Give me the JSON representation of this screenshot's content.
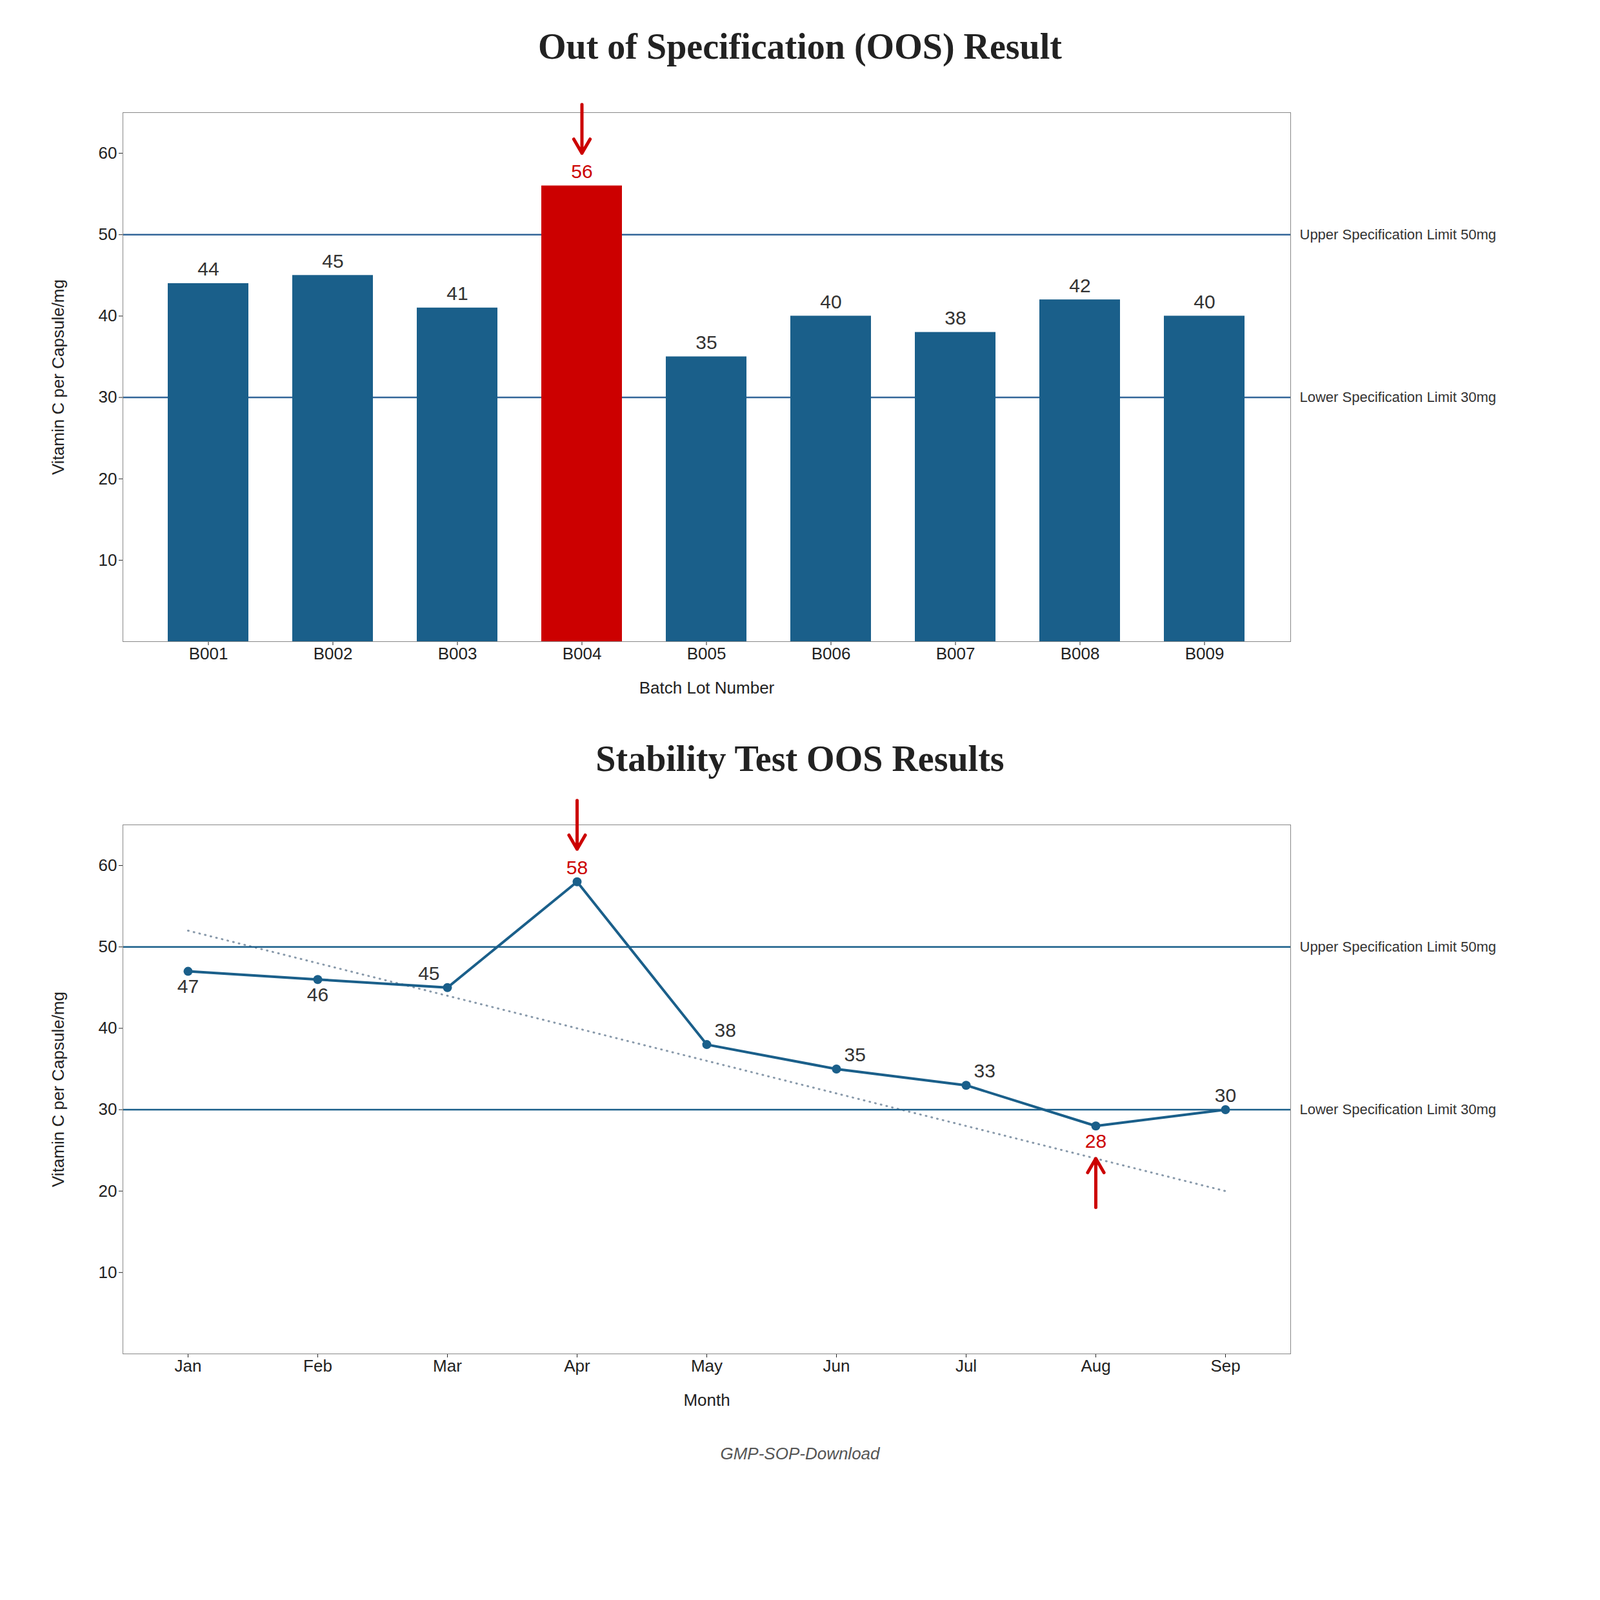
{
  "chart_data": [
    {
      "type": "bar",
      "title": "Out of Specification (OOS) Result",
      "xlabel": "Batch Lot Number",
      "ylabel": "Vitamin C per Capsule/mg",
      "categories": [
        "B001",
        "B002",
        "B003",
        "B004",
        "B005",
        "B006",
        "B007",
        "B008",
        "B009"
      ],
      "values": [
        44,
        45,
        41,
        56,
        35,
        40,
        38,
        42,
        40
      ],
      "colors": [
        "#1a5f8a",
        "#1a5f8a",
        "#1a5f8a",
        "#cc0000",
        "#1a5f8a",
        "#1a5f8a",
        "#1a5f8a",
        "#1a5f8a",
        "#1a5f8a"
      ],
      "ylim": [
        0,
        65
      ],
      "yticks": [
        10,
        20,
        30,
        40,
        50,
        60
      ],
      "grid": false,
      "data_labels": true,
      "limits": [
        {
          "value": 50,
          "label": "Upper Specification Limit 50mg",
          "color": "#336699"
        },
        {
          "value": 30,
          "label": "Lower Specification Limit 30mg",
          "color": "#336699"
        }
      ],
      "oos_color": "#cc0000",
      "oos_points": [
        {
          "index": 3,
          "arrow": "down"
        }
      ]
    },
    {
      "type": "line",
      "title": "Stability Test OOS Results",
      "xlabel": "Month",
      "ylabel": "Vitamin C per Capsule/mg",
      "categories": [
        "Jan",
        "Feb",
        "Mar",
        "Apr",
        "May",
        "Jun",
        "Jul",
        "Aug",
        "Sep"
      ],
      "values": [
        47,
        46,
        45,
        58,
        38,
        35,
        33,
        28,
        30
      ],
      "color": "#1a5f8a",
      "marker": "circle",
      "line_style": "solid",
      "ylim": [
        0,
        65
      ],
      "yticks": [
        10,
        20,
        30,
        40,
        50,
        60
      ],
      "grid": false,
      "data_labels": true,
      "limits": [
        {
          "value": 50,
          "label": "Upper Specification Limit 50mg",
          "color": "#1a5f8a"
        },
        {
          "value": 30,
          "label": "Lower Specification Limit 30mg",
          "color": "#1a5f8a"
        }
      ],
      "trend": {
        "start": 52,
        "end": 20,
        "color": "#8899aa",
        "line_style": "dotted"
      },
      "oos_color": "#cc0000",
      "oos_points": [
        {
          "index": 3,
          "arrow": "down"
        },
        {
          "index": 7,
          "arrow": "up"
        }
      ]
    }
  ],
  "credit": "GMP-SOP-Download"
}
